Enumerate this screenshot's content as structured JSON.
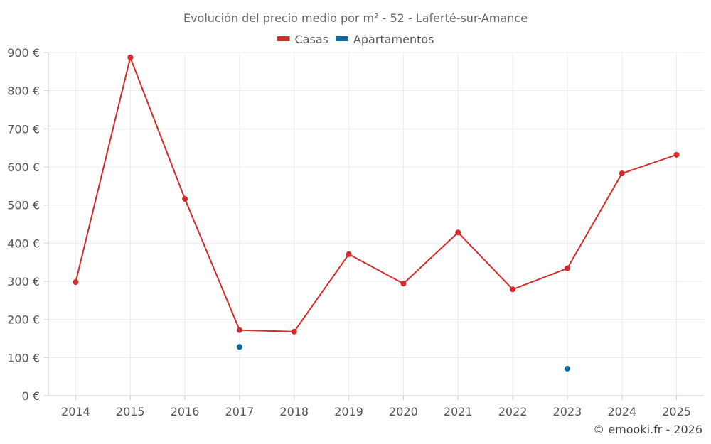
{
  "chart_data": {
    "type": "line",
    "title": "Evolución del precio medio por m² - 52 - Laferté-sur-Amance",
    "categories": [
      "2014",
      "2015",
      "2016",
      "2017",
      "2018",
      "2019",
      "2020",
      "2021",
      "2022",
      "2023",
      "2024",
      "2025"
    ],
    "series": [
      {
        "name": "Casas",
        "color": "#d42a2a",
        "values": [
          298,
          887,
          516,
          172,
          168,
          371,
          294,
          428,
          279,
          334,
          583,
          632
        ]
      },
      {
        "name": "Apartamentos",
        "color": "#0a6aa0",
        "values": [
          null,
          null,
          null,
          128,
          null,
          null,
          null,
          null,
          null,
          71,
          null,
          null
        ]
      }
    ],
    "ylim": [
      0,
      900
    ],
    "yticks": [
      0,
      100,
      200,
      300,
      400,
      500,
      600,
      700,
      800,
      900
    ],
    "ytick_labels": [
      "0 €",
      "100 €",
      "200 €",
      "300 €",
      "400 €",
      "500 €",
      "600 €",
      "700 €",
      "800 €",
      "900 €"
    ],
    "xlabel": "",
    "ylabel": "",
    "grid": true,
    "legend": "top-center"
  },
  "credit": "© emooki.fr - 2026"
}
